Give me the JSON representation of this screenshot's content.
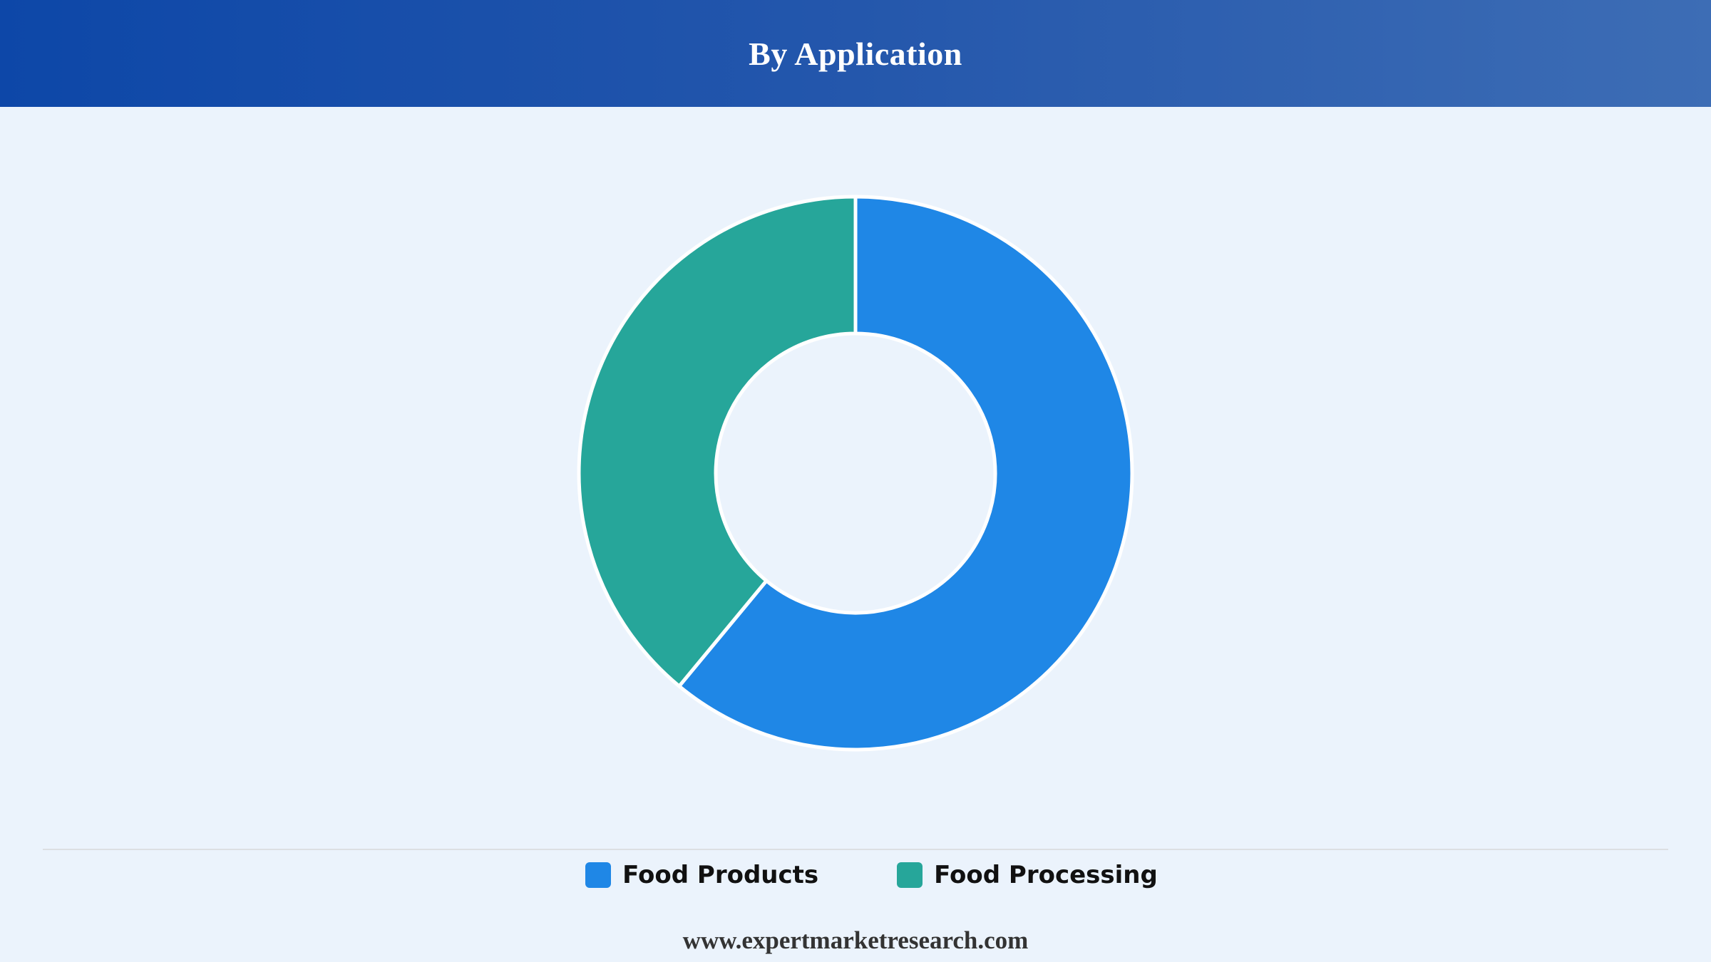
{
  "header": {
    "title": "By Application"
  },
  "chart_data": {
    "type": "pie",
    "variant": "donut",
    "title": "By Application",
    "categories": [
      "Food Products",
      "Food Processing"
    ],
    "values": [
      61,
      39
    ],
    "unit": "%",
    "colors": [
      "#1f87e6",
      "#26a69a"
    ],
    "legend_position": "bottom"
  },
  "legend": {
    "items": [
      {
        "label": "Food Products",
        "color": "#1f87e6"
      },
      {
        "label": "Food Processing",
        "color": "#26a69a"
      }
    ]
  },
  "footer": {
    "website": "www.expertmarketresearch.com"
  }
}
